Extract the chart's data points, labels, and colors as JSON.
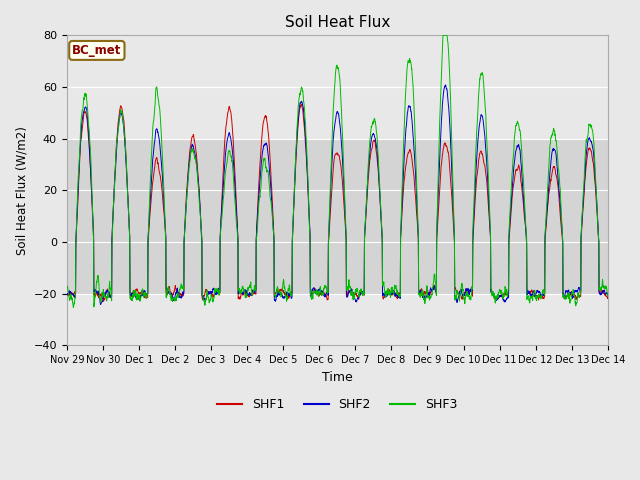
{
  "title": "Soil Heat Flux",
  "ylabel": "Soil Heat Flux (W/m2)",
  "xlabel": "Time",
  "ylim": [
    -40,
    80
  ],
  "yticks": [
    -40,
    -20,
    0,
    20,
    40,
    60,
    80
  ],
  "legend_label": "BC_met",
  "series_labels": [
    "SHF1",
    "SHF2",
    "SHF3"
  ],
  "series_colors": [
    "#cc0000",
    "#0000cc",
    "#00bb00"
  ],
  "background_color": "#e8e8e8",
  "plot_bg_color": "#e8e8e8",
  "band_color": "#d4d4d4",
  "band_range": [
    -20,
    40
  ],
  "num_days": 15,
  "points_per_day": 144,
  "tick_labels": [
    "Nov 29",
    "Nov 30",
    "Dec 1",
    "Dec 2",
    "Dec 3",
    "Dec 4",
    "Dec 5",
    "Dec 6",
    "Dec 7",
    "Dec 8",
    "Dec 9",
    "Dec 10",
    "Dec 11",
    "Dec 12",
    "Dec 13",
    "Dec 14"
  ],
  "day_amplitudes_shf1": [
    0.95,
    1.0,
    0.6,
    0.8,
    1.0,
    0.95,
    1.0,
    0.7,
    0.75,
    0.7,
    0.75,
    0.7,
    0.55,
    0.55,
    0.7
  ],
  "day_amplitudes_shf3": [
    1.1,
    0.95,
    1.1,
    0.7,
    0.65,
    0.6,
    1.15,
    1.3,
    0.9,
    1.4,
    1.65,
    1.25,
    0.9,
    0.85,
    0.9
  ],
  "night_base": -20,
  "day_peak_base": 52,
  "figsize": [
    6.4,
    4.8
  ],
  "dpi": 100
}
